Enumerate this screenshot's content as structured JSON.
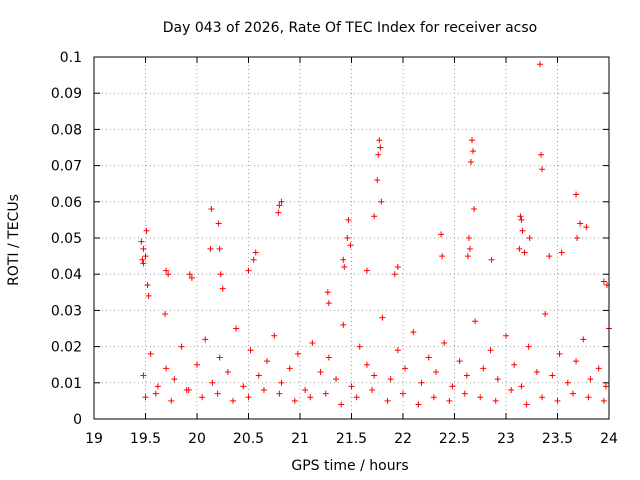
{
  "chart_data": {
    "type": "scatter",
    "title": "Day 043 of 2026, Rate Of TEC Index for receiver acso",
    "xlabel": "GPS time / hours",
    "ylabel": "ROTI / TECUs",
    "xlim": [
      19,
      24
    ],
    "ylim": [
      0,
      0.1
    ],
    "xticks": [
      19,
      19.5,
      20,
      20.5,
      21,
      21.5,
      22,
      22.5,
      23,
      23.5,
      24
    ],
    "xtick_labels": [
      "19",
      "19.5",
      "20",
      "20.5",
      "21",
      "21.5",
      "22",
      "22.5",
      "23",
      "23.5",
      "24"
    ],
    "yticks": [
      0,
      0.01,
      0.02,
      0.03,
      0.04,
      0.05,
      0.06,
      0.07,
      0.08,
      0.09,
      0.1
    ],
    "ytick_labels": [
      "0",
      "0.01",
      "0.02",
      "0.03",
      "0.04",
      "0.05",
      "0.06",
      "0.07",
      "0.08",
      "0.09",
      "0.1"
    ],
    "grid": true,
    "marker": "+",
    "color": "#ff0000",
    "series": [
      {
        "x": [
          19.46,
          19.47,
          19.48,
          19.48,
          19.5,
          19.51,
          19.52,
          19.53,
          19.69,
          19.7,
          19.72,
          19.93,
          19.95,
          20.13,
          20.14,
          20.21,
          20.22,
          20.23,
          20.25,
          20.5,
          20.55,
          20.57,
          20.79,
          20.8,
          20.82,
          21.27,
          21.28,
          21.42,
          21.43,
          21.46,
          21.47,
          21.49,
          21.65,
          21.72,
          21.75,
          21.76,
          21.77,
          21.78,
          21.79,
          21.92,
          21.95,
          22.37,
          22.38,
          22.63,
          22.64,
          22.65,
          22.66,
          22.67,
          22.68,
          22.69,
          22.86,
          23.13,
          23.14,
          23.15,
          23.16,
          23.18,
          23.23,
          23.33,
          23.34,
          23.35,
          23.42,
          23.54,
          23.68,
          23.69,
          23.72,
          23.78,
          23.95,
          23.98,
          24.0,
          19.48,
          19.55,
          19.62,
          19.7,
          19.78,
          19.85,
          19.92,
          20.0,
          20.08,
          20.15,
          20.22,
          20.3,
          20.38,
          20.45,
          20.52,
          20.6,
          20.68,
          20.75,
          20.82,
          20.9,
          20.98,
          21.05,
          21.12,
          21.2,
          21.28,
          21.35,
          21.42,
          21.5,
          21.58,
          21.65,
          21.72,
          21.8,
          21.88,
          21.95,
          22.02,
          22.1,
          22.18,
          22.25,
          22.32,
          22.4,
          22.48,
          22.55,
          22.62,
          22.7,
          22.78,
          22.85,
          22.92,
          23.0,
          23.08,
          23.15,
          23.22,
          23.3,
          23.38,
          23.45,
          23.52,
          23.6,
          23.68,
          23.75,
          23.82,
          23.9,
          23.97,
          19.5,
          19.6,
          19.75,
          19.9,
          20.05,
          20.2,
          20.35,
          20.5,
          20.65,
          20.8,
          20.95,
          21.1,
          21.25,
          21.4,
          21.55,
          21.7,
          21.85,
          22.0,
          22.15,
          22.3,
          22.45,
          22.6,
          22.75,
          22.9,
          23.05,
          23.2,
          23.35,
          23.5,
          23.65,
          23.8,
          23.95
        ],
        "y": [
          0.049,
          0.044,
          0.047,
          0.043,
          0.045,
          0.052,
          0.037,
          0.034,
          0.029,
          0.041,
          0.04,
          0.04,
          0.039,
          0.047,
          0.058,
          0.054,
          0.047,
          0.04,
          0.036,
          0.041,
          0.044,
          0.046,
          0.057,
          0.059,
          0.06,
          0.035,
          0.032,
          0.044,
          0.042,
          0.05,
          0.055,
          0.048,
          0.041,
          0.056,
          0.066,
          0.073,
          0.077,
          0.075,
          0.06,
          0.04,
          0.042,
          0.051,
          0.045,
          0.045,
          0.05,
          0.047,
          0.071,
          0.077,
          0.074,
          0.058,
          0.044,
          0.047,
          0.056,
          0.055,
          0.052,
          0.046,
          0.05,
          0.098,
          0.073,
          0.069,
          0.045,
          0.046,
          0.062,
          0.05,
          0.054,
          0.053,
          0.038,
          0.037,
          0.025,
          0.012,
          0.018,
          0.009,
          0.014,
          0.011,
          0.02,
          0.008,
          0.015,
          0.022,
          0.01,
          0.017,
          0.013,
          0.025,
          0.009,
          0.019,
          0.012,
          0.016,
          0.023,
          0.01,
          0.014,
          0.018,
          0.008,
          0.021,
          0.013,
          0.017,
          0.011,
          0.026,
          0.009,
          0.02,
          0.015,
          0.012,
          0.028,
          0.011,
          0.019,
          0.014,
          0.024,
          0.01,
          0.017,
          0.013,
          0.021,
          0.009,
          0.016,
          0.012,
          0.027,
          0.014,
          0.019,
          0.011,
          0.023,
          0.015,
          0.009,
          0.02,
          0.013,
          0.029,
          0.012,
          0.018,
          0.01,
          0.016,
          0.022,
          0.011,
          0.014,
          0.009,
          0.006,
          0.007,
          0.005,
          0.008,
          0.006,
          0.007,
          0.005,
          0.006,
          0.008,
          0.007,
          0.005,
          0.006,
          0.007,
          0.004,
          0.006,
          0.008,
          0.005,
          0.007,
          0.004,
          0.006,
          0.005,
          0.007,
          0.006,
          0.005,
          0.008,
          0.004,
          0.006,
          0.005,
          0.007,
          0.006,
          0.005
        ]
      }
    ]
  }
}
